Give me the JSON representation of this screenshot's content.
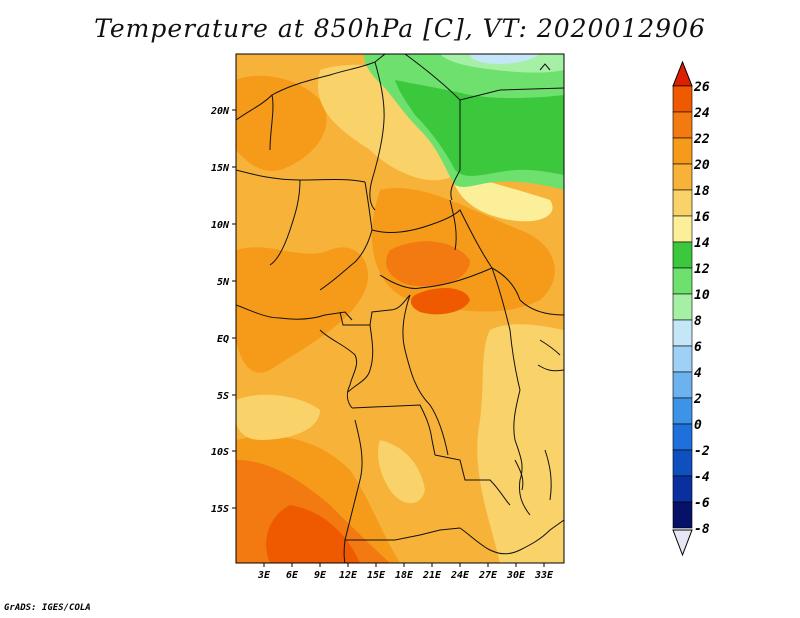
{
  "title": "Temperature at 850hPa [C], VT: 2020012906",
  "credit": "GrADS: IGES/COLA",
  "map": {
    "region": "Central and Southern Africa",
    "lon_range": [
      0,
      35
    ],
    "lat_range": [
      -20,
      25
    ],
    "x_ticks": [
      "3E",
      "6E",
      "9E",
      "12E",
      "15E",
      "18E",
      "21E",
      "24E",
      "27E",
      "30E",
      "33E"
    ],
    "x_tick_values": [
      3,
      6,
      9,
      12,
      15,
      18,
      21,
      24,
      27,
      30,
      33
    ],
    "y_ticks": [
      "20N",
      "15N",
      "10N",
      "5N",
      "EQ",
      "5S",
      "10S",
      "15S"
    ],
    "y_tick_values": [
      20,
      15,
      10,
      5,
      0,
      -5,
      -10,
      -15
    ]
  },
  "colorbar": {
    "labels": [
      "26",
      "24",
      "22",
      "20",
      "18",
      "16",
      "14",
      "12",
      "10",
      "8",
      "6",
      "4",
      "2",
      "0",
      "-2",
      "-4",
      "-6",
      "-8"
    ],
    "colors": [
      "#d42000",
      "#ef5a00",
      "#f27a10",
      "#f69a1a",
      "#f7b23a",
      "#fad26a",
      "#fcef9a",
      "#3cc83c",
      "#6ee06e",
      "#a6f0a6",
      "#c4e6f7",
      "#9fd0f5",
      "#6cb2ef",
      "#3d94e6",
      "#1f6fdc",
      "#104fc0",
      "#0a30a0",
      "#061268"
    ],
    "top_color": "#dc2000",
    "bottom_color": "#e6e6f5",
    "units": "C"
  }
}
